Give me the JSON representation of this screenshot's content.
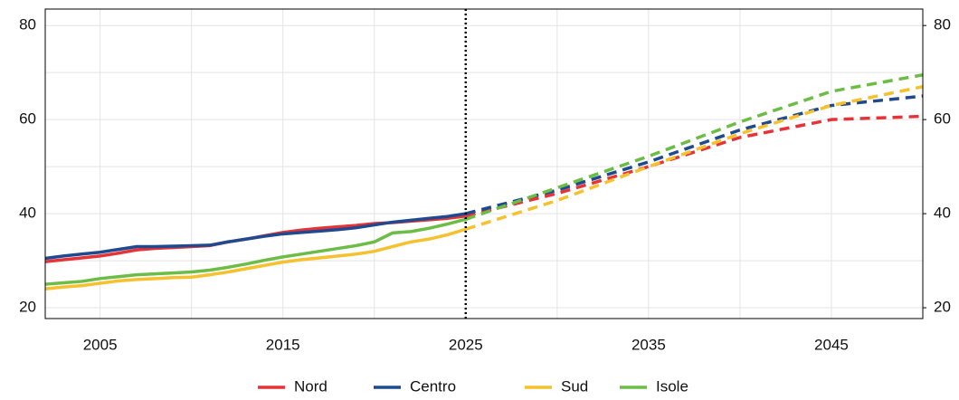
{
  "chart_data": {
    "type": "line",
    "x": [
      2002,
      2003,
      2004,
      2005,
      2006,
      2007,
      2008,
      2009,
      2010,
      2011,
      2012,
      2013,
      2014,
      2015,
      2016,
      2017,
      2018,
      2019,
      2020,
      2021,
      2022,
      2023,
      2024,
      2025,
      2030,
      2035,
      2040,
      2045,
      2050
    ],
    "projection_from": 2025,
    "series": [
      {
        "name": "Nord",
        "color": "#e63337",
        "values": [
          29.8,
          30.2,
          30.6,
          31.0,
          31.6,
          32.3,
          32.6,
          32.8,
          33.0,
          33.2,
          34.0,
          34.6,
          35.3,
          36.0,
          36.5,
          36.9,
          37.2,
          37.5,
          37.9,
          38.1,
          38.4,
          38.7,
          39.0,
          39.5,
          44.3,
          50.0,
          56.2,
          60.0,
          60.7
        ]
      },
      {
        "name": "Centro",
        "color": "#1f4a8f",
        "values": [
          30.5,
          31.0,
          31.4,
          31.8,
          32.4,
          33.0,
          33.0,
          33.1,
          33.2,
          33.3,
          34.0,
          34.6,
          35.2,
          35.7,
          36.0,
          36.3,
          36.6,
          37.0,
          37.6,
          38.2,
          38.6,
          39.0,
          39.4,
          40.0,
          45.0,
          51.0,
          57.8,
          63.0,
          65.0
        ]
      },
      {
        "name": "Sud",
        "color": "#f5c12e",
        "values": [
          24.0,
          24.4,
          24.7,
          25.2,
          25.7,
          26.0,
          26.2,
          26.4,
          26.5,
          27.0,
          27.6,
          28.3,
          29.0,
          29.7,
          30.2,
          30.6,
          31.0,
          31.4,
          32.0,
          33.0,
          34.0,
          34.6,
          35.5,
          36.7,
          42.8,
          50.0,
          57.0,
          63.0,
          67.0
        ]
      },
      {
        "name": "Isole",
        "color": "#6cbd45",
        "values": [
          25.0,
          25.3,
          25.6,
          26.2,
          26.6,
          27.0,
          27.2,
          27.4,
          27.6,
          28.0,
          28.6,
          29.3,
          30.1,
          30.8,
          31.4,
          32.0,
          32.6,
          33.2,
          34.0,
          35.9,
          36.2,
          36.9,
          37.8,
          38.8,
          45.5,
          52.2,
          59.5,
          66.0,
          69.5
        ]
      }
    ],
    "xlim": [
      2002,
      2050
    ],
    "xticks": [
      2005,
      2015,
      2025,
      2035,
      2045
    ],
    "x_minor_grid": [
      2010,
      2020,
      2030,
      2040,
      2050
    ],
    "ylim": [
      17.7,
      83.5
    ],
    "yticks": [
      20,
      40,
      60,
      80
    ],
    "y_minor_grid": [
      30,
      50,
      70
    ],
    "y2lim": [
      17.7,
      83.5
    ],
    "y2ticks": [
      20,
      40,
      60,
      80
    ],
    "divider_x": 2025,
    "grid": true
  }
}
